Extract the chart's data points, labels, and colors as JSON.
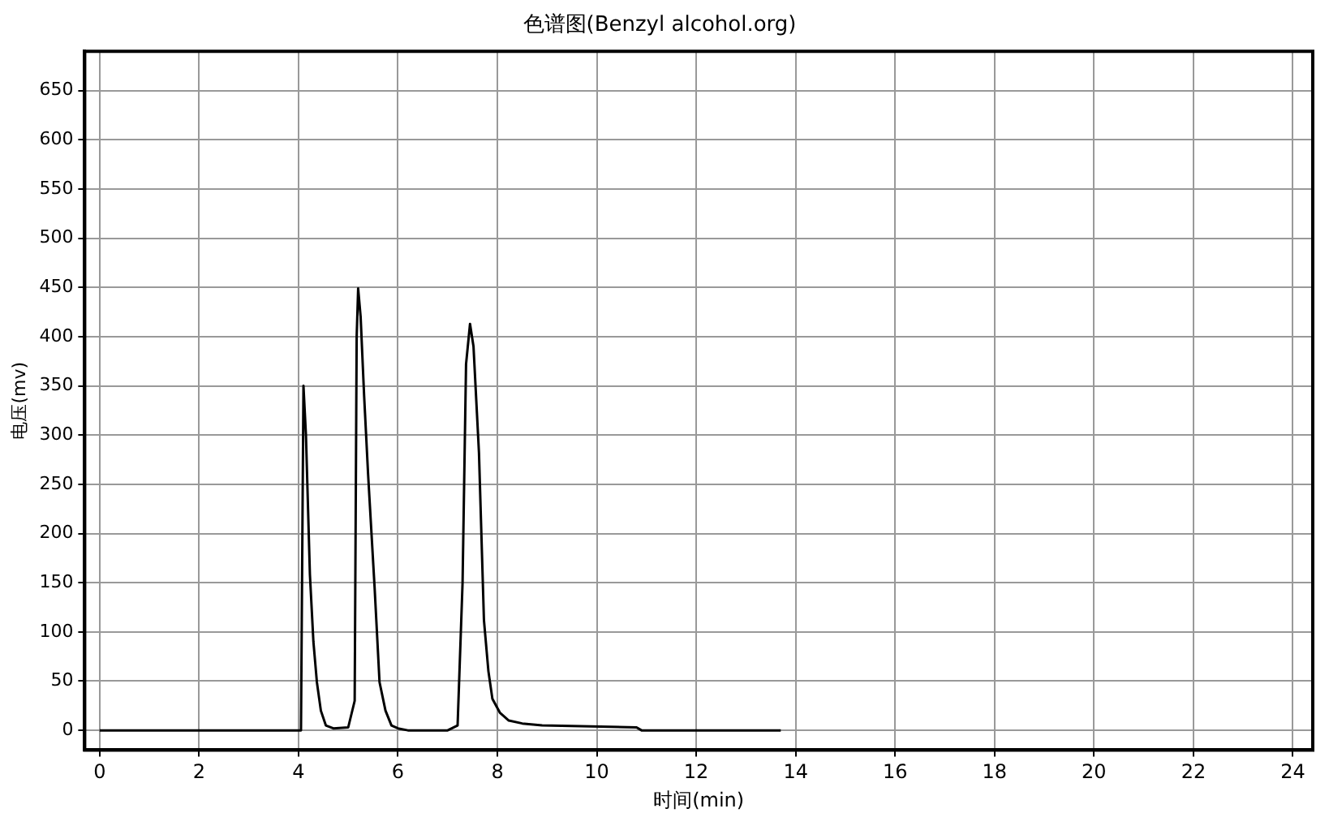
{
  "chart_data": {
    "type": "line",
    "title": "色谱图(Benzyl alcohol.org)",
    "xlabel": "时间(min)",
    "ylabel": "电压(mv)",
    "x": [
      0,
      4.0,
      4.05,
      4.1,
      4.15,
      4.23,
      4.3,
      4.37,
      4.45,
      4.55,
      4.7,
      5.0,
      5.13,
      5.17,
      5.2,
      5.25,
      5.32,
      5.4,
      5.53,
      5.63,
      5.75,
      5.87,
      6.0,
      6.2,
      7.0,
      7.2,
      7.3,
      7.37,
      7.45,
      7.52,
      7.63,
      7.73,
      7.82,
      7.9,
      8.05,
      8.23,
      8.5,
      8.9,
      10.8,
      10.9,
      13.7
    ],
    "series": [
      {
        "color": "#000000",
        "values": [
          0,
          0,
          0,
          350,
          300,
          158,
          90,
          49,
          20,
          5,
          2,
          3,
          30,
          400,
          449,
          420,
          340,
          260,
          146,
          49,
          20,
          5,
          2,
          0,
          0,
          5,
          150,
          372,
          413,
          390,
          282,
          112,
          60,
          32,
          18,
          10,
          7,
          5,
          3,
          0,
          0
        ]
      }
    ],
    "xlim": [
      -0.3,
      24.4
    ],
    "ylim": [
      -20,
      690
    ],
    "xticks": [
      0,
      2,
      4,
      6,
      8,
      10,
      12,
      14,
      16,
      18,
      20,
      22,
      24
    ],
    "yticks": [
      0,
      50,
      100,
      150,
      200,
      250,
      300,
      350,
      400,
      450,
      500,
      550,
      600,
      650
    ],
    "grid": true,
    "legend": false,
    "marker": "none",
    "line_style": "solid"
  }
}
